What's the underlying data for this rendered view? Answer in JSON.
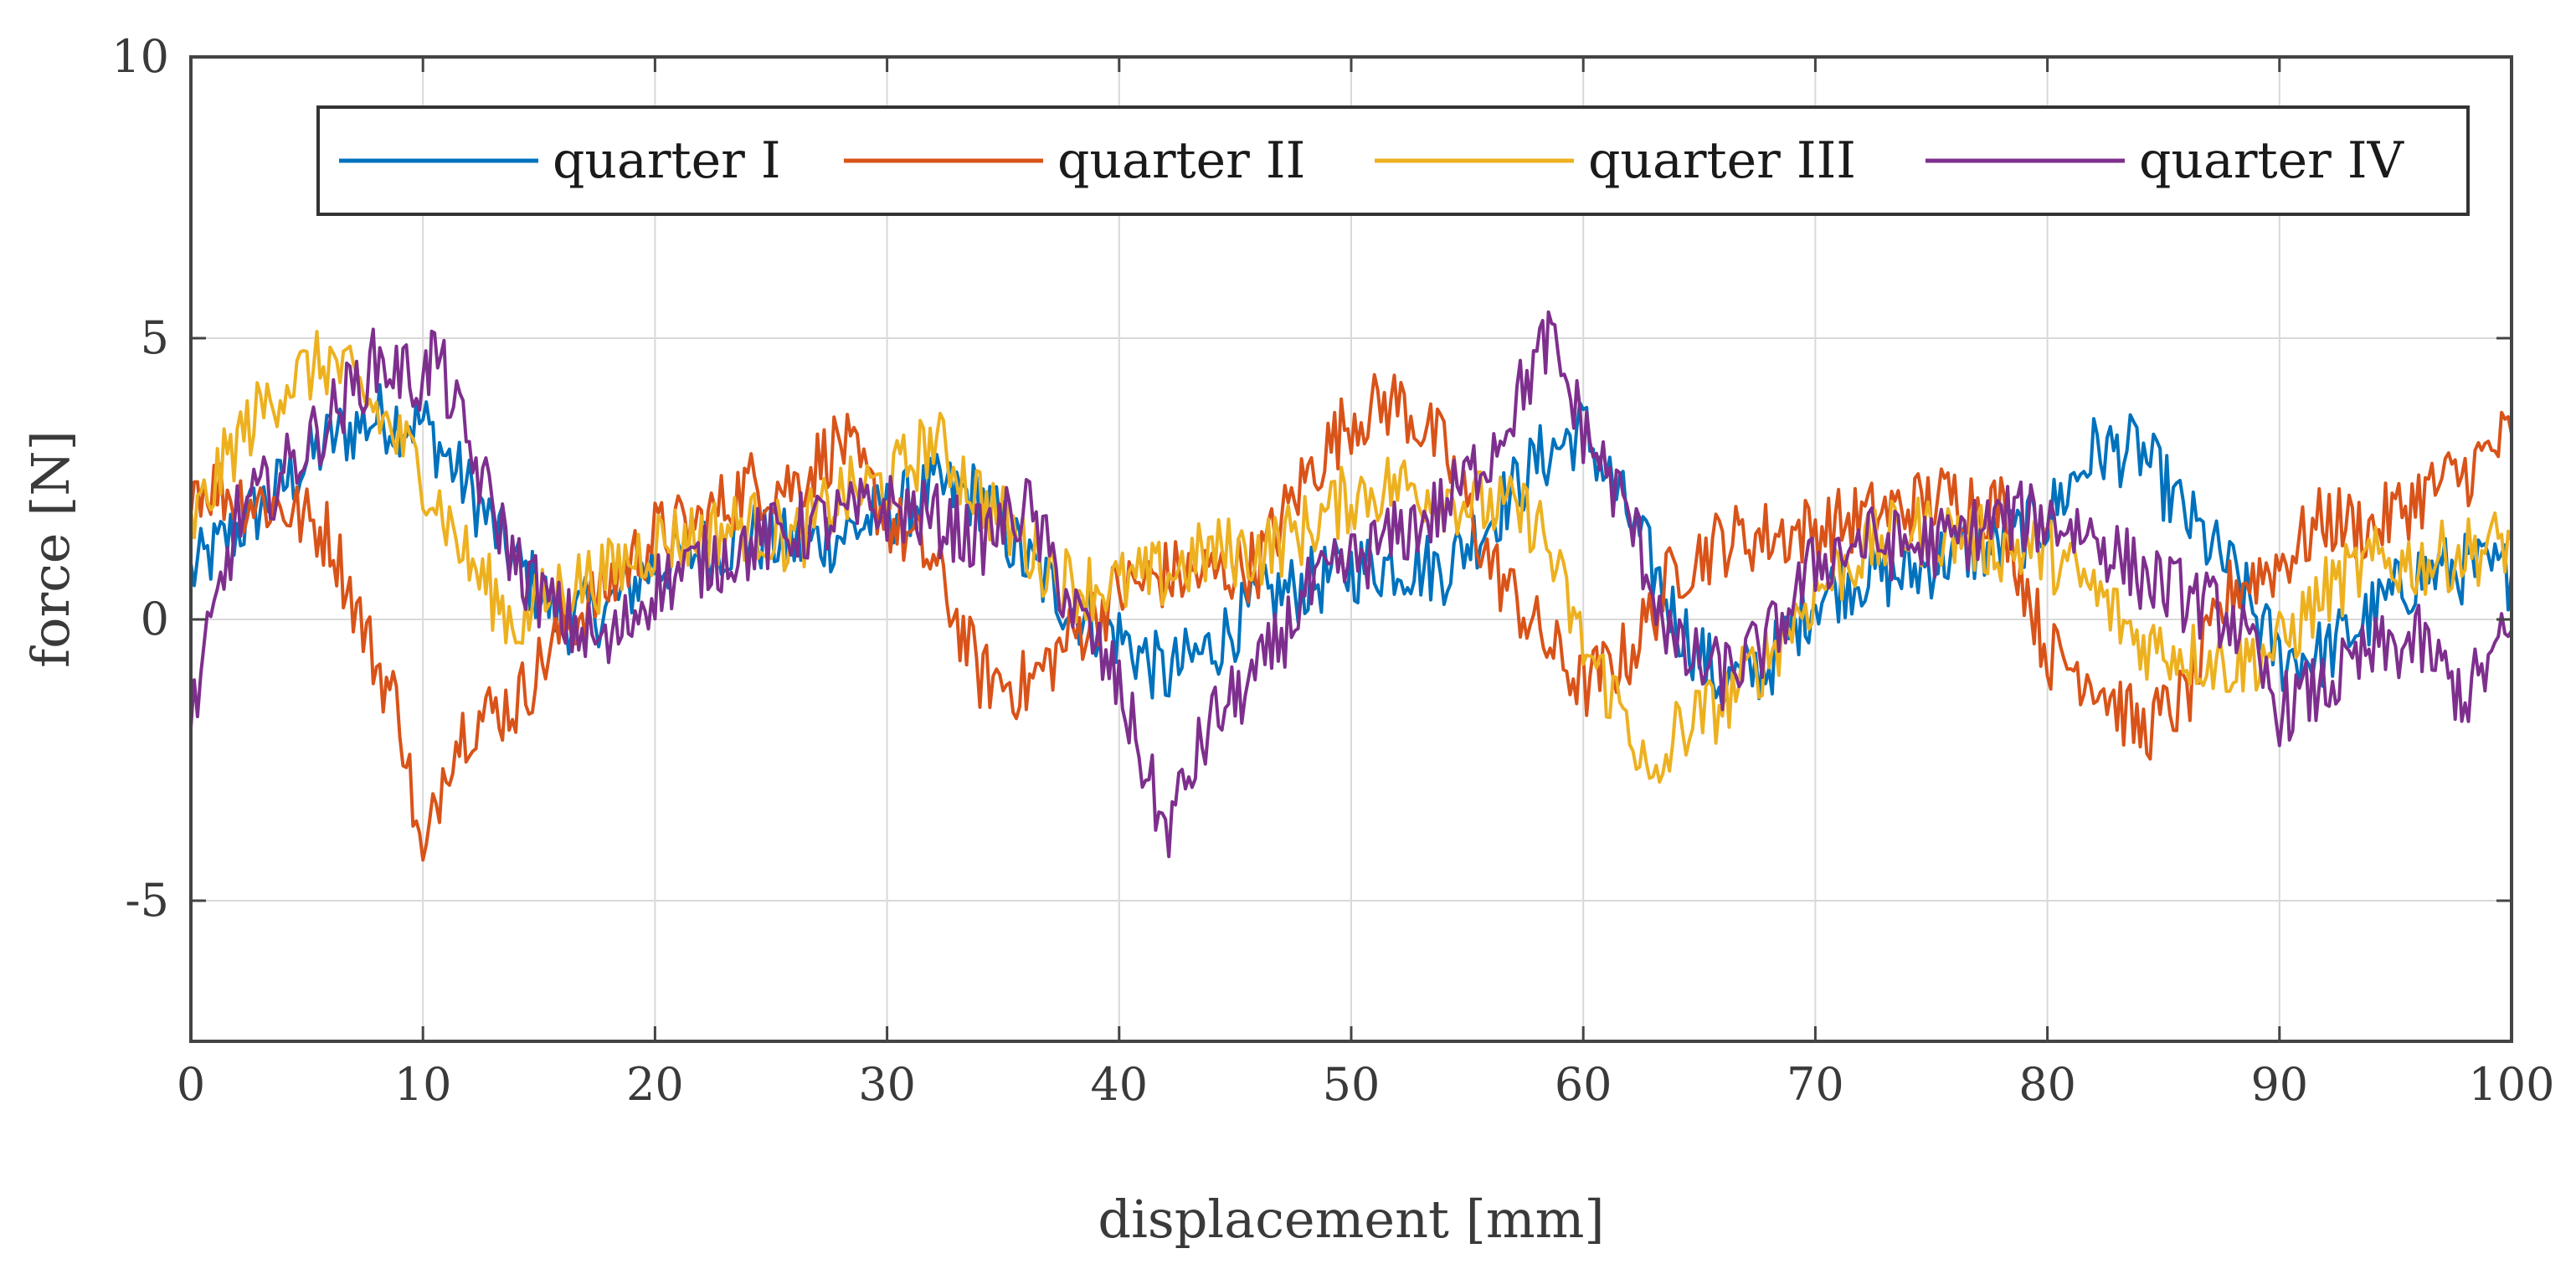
{
  "chart_data": {
    "type": "line",
    "xlabel": "displacement [mm]",
    "ylabel": "force [N]",
    "xlim": [
      0,
      100
    ],
    "ylim": [
      -7.5,
      10
    ],
    "xticks": [
      0,
      10,
      20,
      30,
      40,
      50,
      60,
      70,
      80,
      90,
      100
    ],
    "yticks": [
      -5,
      0,
      5,
      10
    ],
    "xtick_labels": [
      "0",
      "10",
      "20",
      "30",
      "40",
      "50",
      "60",
      "70",
      "80",
      "90",
      "100"
    ],
    "ytick_labels": [
      "-5",
      "0",
      "5",
      "10"
    ],
    "grid": true,
    "legend_position": "top (single row)",
    "series": [
      {
        "name": "quarter I",
        "color": "#0072BD",
        "x": [
          0,
          2,
          4,
          6,
          8,
          10,
          12,
          14,
          16,
          18,
          20,
          22,
          24,
          26,
          28,
          30,
          32,
          34,
          36,
          38,
          40,
          42,
          44,
          46,
          48,
          50,
          52,
          54,
          56,
          58,
          60,
          62,
          64,
          66,
          68,
          70,
          72,
          74,
          76,
          78,
          80,
          82,
          84,
          86,
          88,
          90,
          92,
          94,
          96,
          98,
          100
        ],
        "y": [
          0.8,
          1.6,
          2.4,
          3.2,
          3.6,
          3.5,
          2.3,
          1.0,
          0.0,
          0.2,
          1.0,
          1.2,
          1.5,
          1.3,
          1.5,
          1.9,
          2.3,
          2.2,
          1.0,
          0.2,
          -0.3,
          -1.0,
          -0.5,
          0.3,
          0.6,
          0.9,
          1.0,
          0.9,
          1.8,
          2.8,
          3.4,
          1.8,
          0.0,
          -1.2,
          -0.8,
          0.4,
          0.8,
          0.8,
          1.2,
          1.3,
          1.8,
          3.0,
          3.0,
          1.8,
          0.8,
          -0.7,
          -0.6,
          0.1,
          0.8,
          0.9,
          0.8
        ]
      },
      {
        "name": "quarter II",
        "color": "#D95319",
        "x": [
          0,
          2,
          4,
          6,
          8,
          9,
          10,
          11,
          12,
          14,
          16,
          18,
          20,
          22,
          24,
          26,
          28,
          30,
          32,
          34,
          36,
          38,
          40,
          42,
          44,
          46,
          48,
          50,
          52,
          54,
          56,
          58,
          60,
          62,
          64,
          66,
          68,
          70,
          72,
          74,
          76,
          78,
          80,
          82,
          84,
          86,
          88,
          90,
          92,
          94,
          96,
          98,
          100
        ],
        "y": [
          2.5,
          2.2,
          2.0,
          1.5,
          -0.8,
          -1.6,
          -4.5,
          -2.4,
          -1.8,
          -1.5,
          -0.2,
          0.6,
          1.5,
          1.7,
          2.4,
          2.4,
          3.2,
          1.8,
          1.0,
          -1.0,
          -1.2,
          -0.3,
          0.5,
          0.8,
          0.8,
          1.0,
          2.5,
          3.6,
          3.9,
          3.0,
          1.0,
          -0.2,
          -1.2,
          -0.6,
          0.9,
          1.4,
          1.5,
          1.6,
          1.8,
          2.0,
          2.2,
          2.0,
          -0.6,
          -1.0,
          -2.0,
          -1.4,
          0.6,
          1.0,
          1.8,
          1.6,
          2.2,
          2.6,
          3.3
        ]
      },
      {
        "name": "quarter III",
        "color": "#EDB120",
        "x": [
          0,
          2,
          4,
          6,
          8,
          10,
          12,
          14,
          16,
          18,
          20,
          22,
          24,
          26,
          28,
          30,
          32,
          34,
          36,
          38,
          40,
          42,
          44,
          46,
          48,
          50,
          52,
          54,
          56,
          58,
          60,
          62,
          63,
          64,
          66,
          68,
          70,
          72,
          74,
          76,
          78,
          80,
          82,
          84,
          86,
          88,
          90,
          92,
          94,
          96,
          98,
          100
        ],
        "y": [
          1.6,
          3.2,
          4.2,
          4.6,
          3.7,
          2.6,
          1.0,
          -0.1,
          0.6,
          0.8,
          1.4,
          1.5,
          1.7,
          1.4,
          2.2,
          2.4,
          3.2,
          2.2,
          1.3,
          0.6,
          0.6,
          0.8,
          1.2,
          1.2,
          1.6,
          2.2,
          2.4,
          2.2,
          2.0,
          1.8,
          -0.5,
          -1.8,
          -3.2,
          -2.0,
          -1.5,
          -0.6,
          0.5,
          1.2,
          1.6,
          1.5,
          1.3,
          1.2,
          0.5,
          -0.4,
          -0.6,
          -0.8,
          -0.5,
          0.5,
          1.0,
          1.0,
          1.2,
          1.4
        ]
      },
      {
        "name": "quarter IV",
        "color": "#7E2F8E",
        "x": [
          0,
          2,
          4,
          6,
          8,
          10,
          10.5,
          12,
          14,
          16,
          18,
          20,
          22,
          24,
          26,
          28,
          30,
          32,
          34,
          36,
          38,
          40,
          42,
          44,
          46,
          48,
          50,
          52,
          54,
          56,
          58,
          58.5,
          60,
          62,
          64,
          66,
          68,
          70,
          72,
          74,
          76,
          78,
          80,
          82,
          84,
          86,
          88,
          90,
          92,
          94,
          96,
          98,
          100
        ],
        "y": [
          -1.8,
          1.8,
          2.6,
          3.6,
          4.6,
          4.2,
          4.8,
          3.0,
          1.0,
          0.0,
          -0.5,
          0.6,
          1.0,
          1.3,
          1.6,
          1.8,
          2.0,
          1.8,
          1.4,
          2.0,
          0.2,
          -1.2,
          -3.8,
          -1.8,
          -1.0,
          0.4,
          1.0,
          1.5,
          2.0,
          3.0,
          4.6,
          5.0,
          3.4,
          1.8,
          -0.6,
          -1.0,
          -0.4,
          1.0,
          1.4,
          1.3,
          1.4,
          1.8,
          1.8,
          1.5,
          0.8,
          0.4,
          0.0,
          -1.6,
          -1.2,
          -0.6,
          -0.4,
          -1.4,
          -0.2
        ]
      }
    ]
  }
}
